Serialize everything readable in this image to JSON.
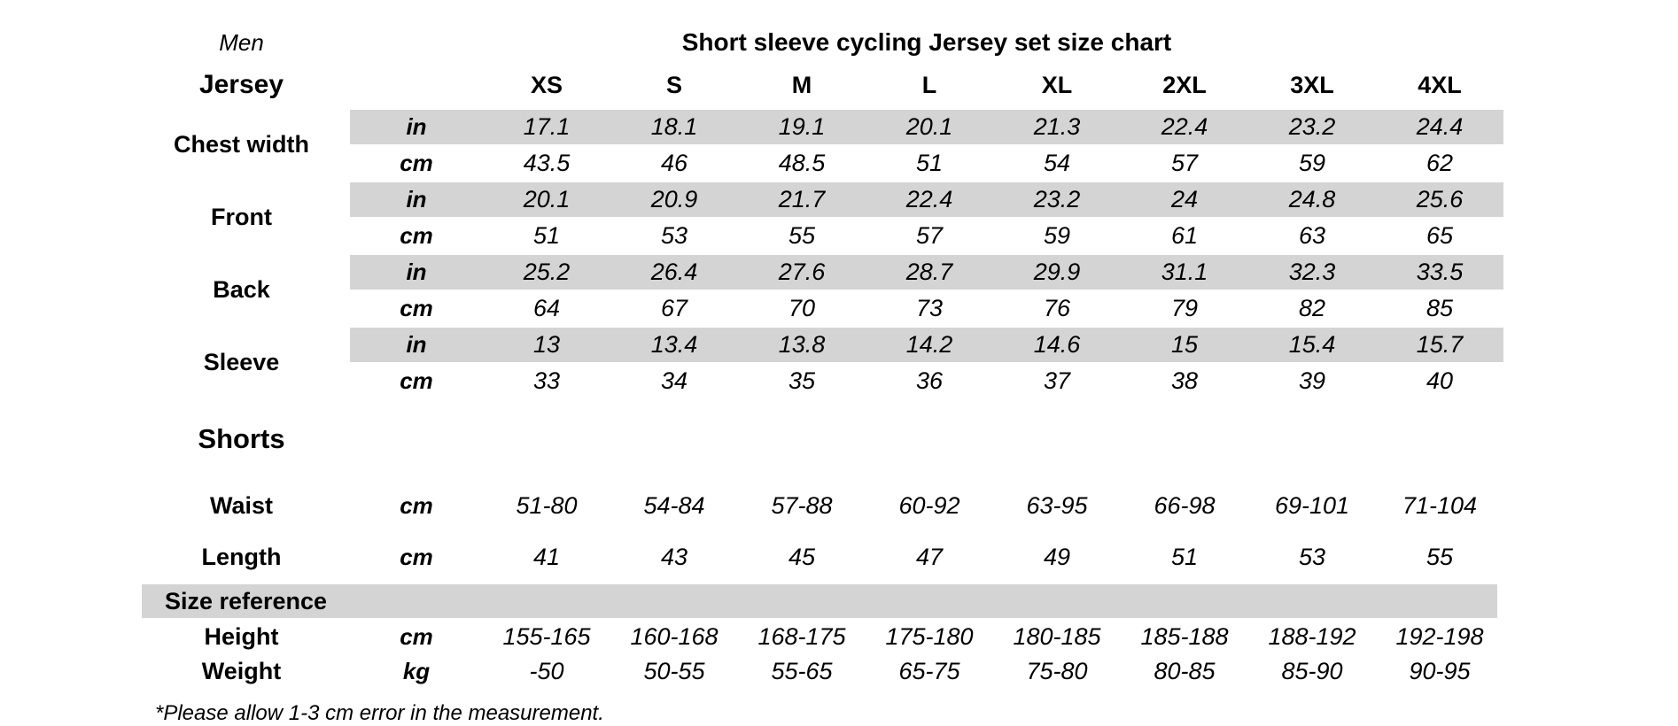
{
  "header": {
    "gender_label": "Men",
    "title": "Short sleeve cycling Jersey set size chart",
    "jersey_label": "Jersey",
    "sizes": [
      "XS",
      "S",
      "M",
      "L",
      "XL",
      "2XL",
      "3XL",
      "4XL"
    ]
  },
  "jersey_rows": [
    {
      "label": "Chest width",
      "unit_in": "in",
      "unit_cm": "cm",
      "in": [
        "17.1",
        "18.1",
        "19.1",
        "20.1",
        "21.3",
        "22.4",
        "23.2",
        "24.4"
      ],
      "cm": [
        "43.5",
        "46",
        "48.5",
        "51",
        "54",
        "57",
        "59",
        "62"
      ]
    },
    {
      "label": "Front",
      "unit_in": "in",
      "unit_cm": "cm",
      "in": [
        "20.1",
        "20.9",
        "21.7",
        "22.4",
        "23.2",
        "24",
        "24.8",
        "25.6"
      ],
      "cm": [
        "51",
        "53",
        "55",
        "57",
        "59",
        "61",
        "63",
        "65"
      ]
    },
    {
      "label": "Back",
      "unit_in": "in",
      "unit_cm": "cm",
      "in": [
        "25.2",
        "26.4",
        "27.6",
        "28.7",
        "29.9",
        "31.1",
        "32.3",
        "33.5"
      ],
      "cm": [
        "64",
        "67",
        "70",
        "73",
        "76",
        "79",
        "82",
        "85"
      ]
    },
    {
      "label": "Sleeve",
      "unit_in": "in",
      "unit_cm": "cm",
      "in": [
        "13",
        "13.4",
        "13.8",
        "14.2",
        "14.6",
        "15",
        "15.4",
        "15.7"
      ],
      "cm": [
        "33",
        "34",
        "35",
        "36",
        "37",
        "38",
        "39",
        "40"
      ]
    }
  ],
  "shorts": {
    "section_label": "Shorts",
    "rows": [
      {
        "label": "Waist",
        "unit": "cm",
        "values": [
          "51-80",
          "54-84",
          "57-88",
          "60-92",
          "63-95",
          "66-98",
          "69-101",
          "71-104"
        ]
      },
      {
        "label": "Length",
        "unit": "cm",
        "values": [
          "41",
          "43",
          "45",
          "47",
          "49",
          "51",
          "53",
          "55"
        ]
      }
    ]
  },
  "size_reference": {
    "section_label": "Size reference",
    "rows": [
      {
        "label": "Height",
        "unit": "cm",
        "values": [
          "155-165",
          "160-168",
          "168-175",
          "175-180",
          "180-185",
          "185-188",
          "188-192",
          "192-198"
        ]
      },
      {
        "label": "Weight",
        "unit": "kg",
        "values": [
          "-50",
          "50-55",
          "55-65",
          "65-75",
          "75-80",
          "80-85",
          "85-90",
          "90-95"
        ]
      }
    ]
  },
  "footnote": "*Please allow 1-3 cm error in the measurement.",
  "colors": {
    "band": "#d4d4d4",
    "text": "#000000",
    "background": "#ffffff"
  }
}
